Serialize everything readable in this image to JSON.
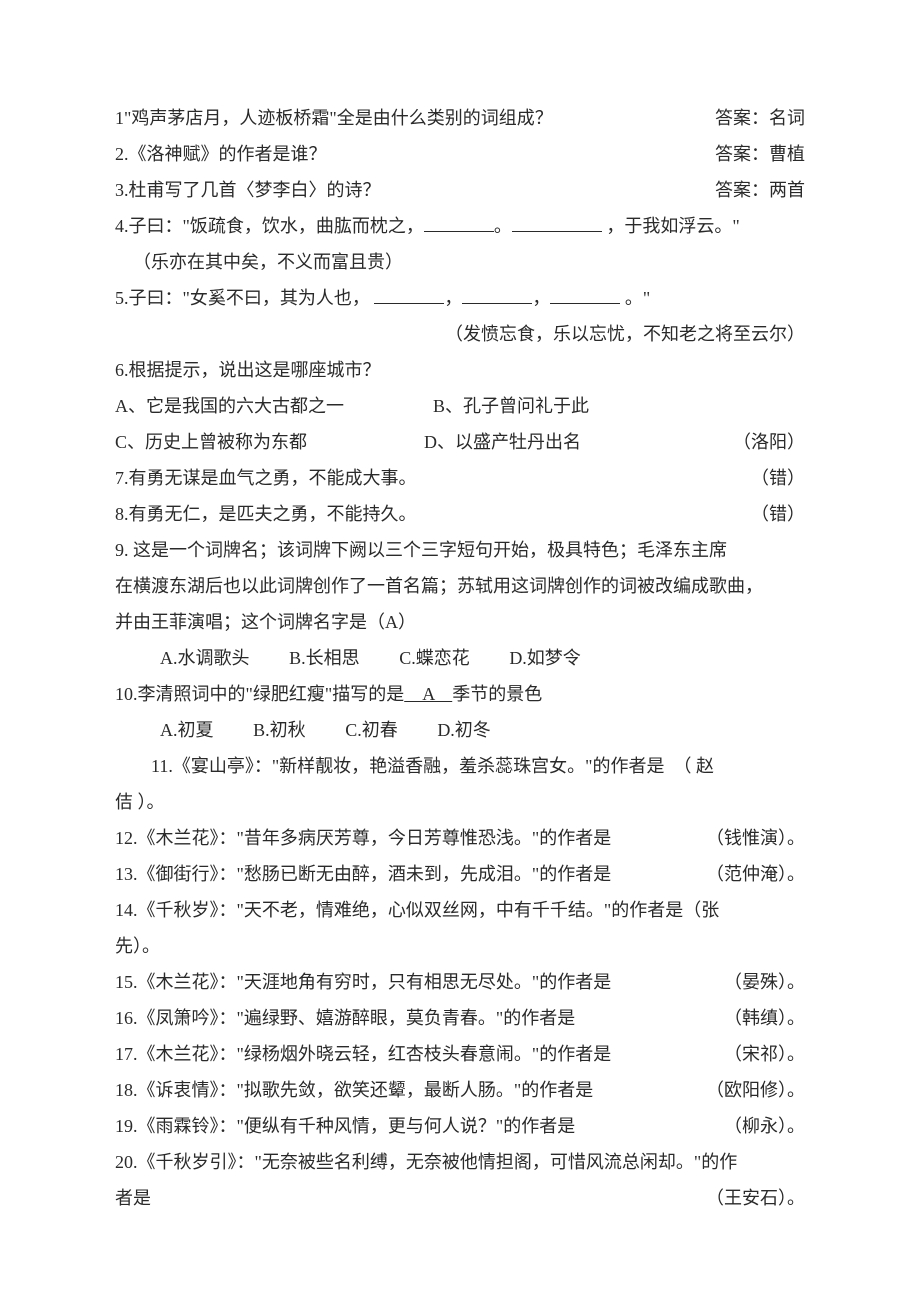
{
  "q1": {
    "text": "1\"鸡声茅店月，人迹板桥霜\"全是由什么类别的词组成？",
    "answer": "答案：名词"
  },
  "q2": {
    "text": "2.《洛神赋》的作者是谁？",
    "answer": "答案：曹植"
  },
  "q3": {
    "text": "3.杜甫写了几首〈梦李白〉的诗？",
    "answer": "答案：两首"
  },
  "q4": {
    "prefix": "4.子曰：\"饭疏食，饮水，曲肱而枕之，",
    "mid": "。",
    "suffix": " ，于我如浮云。\"",
    "ans": "（乐亦在其中矣，不义而富且贵）"
  },
  "q5": {
    "prefix": "5.子曰：\"女奚不曰，其为人也， ",
    "c1": "，",
    "c2": "，",
    "suffix": " 。\"",
    "ans": "（发愤忘食，乐以忘忧，不知老之将至云尔）"
  },
  "q6": {
    "stem": "6.根据提示，说出这是哪座城市？",
    "a": "A、它是我国的六大古都之一",
    "b": "B、孔子曾问礼于此",
    "c": "C、历史上曾被称为东都",
    "d": "D、以盛产牡丹出名",
    "ans": "（洛阳）"
  },
  "q7": {
    "text": "7.有勇无谋是血气之勇，不能成大事。",
    "ans": "（错）"
  },
  "q8": {
    "text": "8.有勇无仁，是匹夫之勇，不能持久。",
    "ans": "（错）"
  },
  "q9": {
    "line1": "9. 这是一个词牌名；该词牌下阙以三个三字短句开始，极具特色；毛泽东主席",
    "line2": "在横渡东湖后也以此词牌创作了一首名篇；苏轼用这词牌创作的词被改编成歌曲，",
    "line3": "并由王菲演唱；这个词牌名字是（A）",
    "a": "A.水调歌头",
    "b": "B.长相思",
    "c": "C.蝶恋花",
    "d": "D.如梦令"
  },
  "q10": {
    "prefix": "10.李清照词中的\"绿肥红瘦\"描写的是",
    "fill": "　A　",
    "suffix": "季节的景色",
    "a": "A.初夏",
    "b": "B.初秋",
    "c": "C.初春",
    "d": "D.初冬"
  },
  "q11": {
    "line1": "11.《宴山亭》：\"新样靓妆，艳溢香融，羞杀蕊珠宫女。\"的作者是　（ 赵",
    "line2": "佶 ）。"
  },
  "q12": {
    "text": "12.《木兰花》：\"昔年多病厌芳尊，今日芳尊惟恐浅。\"的作者是",
    "ans": "（钱惟演）。"
  },
  "q13": {
    "text": "13.《御街行》：\"愁肠已断无由醉，酒未到，先成泪。\"的作者是",
    "ans": "（范仲淹）。"
  },
  "q14": {
    "line1": "14.《千秋岁》：\"天不老，情难绝，心似双丝网，中有千千结。\"的作者是（张",
    "line2": "先）。"
  },
  "q15": {
    "text": "15.《木兰花》：\"天涯地角有穷时，只有相思无尽处。\"的作者是",
    "ans": "（晏殊）。"
  },
  "q16": {
    "text": "16.《凤箫吟》：\"遍绿野、嬉游醉眼，莫负青春。\"的作者是",
    "ans": "（韩缜）。"
  },
  "q17": {
    "text": "17.《木兰花》：\"绿杨烟外晓云轻，红杏枝头春意闹。\"的作者是",
    "ans": "（宋祁）。"
  },
  "q18": {
    "text": "18.《诉衷情》：\"拟歌先敛，欲笑还颦，最断人肠。\"的作者是",
    "ans": "（欧阳修）。"
  },
  "q19": {
    "text": "19.《雨霖铃》：\"便纵有千种风情，更与何人说？\"的作者是",
    "ans": "（柳永）。"
  },
  "q20": {
    "line1": "20.《千秋岁引》：\"无奈被些名利缚，无奈被他情担阁，可惜风流总闲却。\"的作",
    "line2a": "者是",
    "ans": "（王安石）。"
  }
}
